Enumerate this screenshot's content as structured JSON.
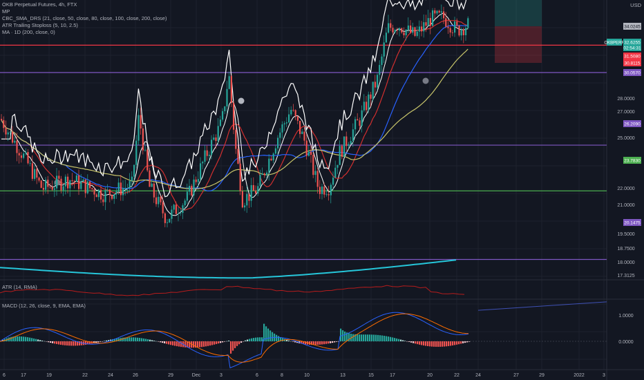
{
  "legend": {
    "title": "OKB Perpetual Futures, 4h, FTX",
    "items": [
      "MP",
      "CBC_SMA_DRS (21, close, 50, close, 80, close, 100, close, 200, close)",
      "ATR Trailing Stoploss (5, 10, 2.5)",
      "MA · 1D (200, close, 0)"
    ]
  },
  "currency": "USD",
  "panes": {
    "atr_label": "ATR (14, RMA)",
    "macd_label": "MACD (12, 26, close, 9, EMA, EMA)"
  },
  "chart_data": {
    "type": "candlestick",
    "symbol": "OKBPERP",
    "timeframe": "4h",
    "price_axis_ticks": [
      "28.0000",
      "27.0000",
      "25.0000",
      "22.0000",
      "21.0000",
      "19.5000",
      "18.7500",
      "18.0000",
      "17.3125"
    ],
    "price_labels": [
      {
        "name": "OKBPERP",
        "value": "32.6255",
        "sub": "02:54:31",
        "color": "#26a69a"
      },
      {
        "name": "",
        "value": "34.0245",
        "color": "#b2b5be",
        "text_color": "#131722"
      },
      {
        "name": "",
        "value": "31.5080",
        "color": "#f23645"
      },
      {
        "name": "",
        "value": "30.8115",
        "color": "#f23645"
      },
      {
        "name": "",
        "value": "30.0570",
        "color": "#7e57c2"
      },
      {
        "name": "",
        "value": "26.2090",
        "color": "#7e57c2"
      },
      {
        "name": "",
        "value": "23.7830",
        "color": "#4caf50"
      },
      {
        "name": "",
        "value": "20.1475",
        "color": "#7e57c2"
      }
    ],
    "horizontal_levels": [
      {
        "value": 31.508,
        "color": "#f23645"
      },
      {
        "value": 30.057,
        "color": "#7e57c2"
      },
      {
        "value": 26.209,
        "color": "#7e57c2"
      },
      {
        "value": 23.783,
        "color": "#4caf50"
      },
      {
        "value": 20.1475,
        "color": "#7e57c2"
      }
    ],
    "x_ticks": [
      "6",
      "17",
      "19",
      "22",
      "24",
      "26",
      "29",
      "Dec",
      "3",
      "6",
      "8",
      "10",
      "13",
      "15",
      "17",
      "20",
      "22",
      "24",
      "27",
      "29",
      "2022",
      "3"
    ],
    "macd_axis_ticks": [
      "1.0000",
      "0.0000"
    ],
    "colors": {
      "up": "#26a69a",
      "down": "#ef5350",
      "wick": "#787b86"
    }
  }
}
